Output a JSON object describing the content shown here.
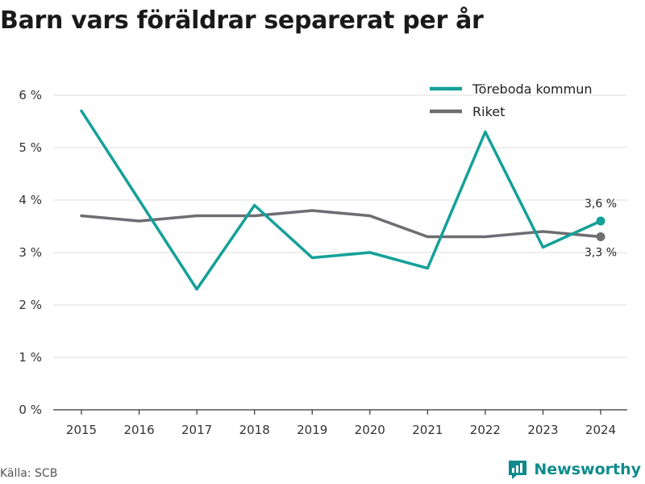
{
  "header": {
    "title": "Barn vars föräldrar separerat per år"
  },
  "footer": {
    "source": "Källa: SCB",
    "brand": "Newsworthy"
  },
  "colors": {
    "series_1": "#14a099",
    "series_2": "#6d6d72",
    "grid": "#dddddd",
    "axis": "#333333",
    "brand": "#0f8b8b"
  },
  "icons": {
    "brand_logo": "bar-chart-speech-bubble-icon"
  },
  "chart_data": {
    "type": "line",
    "title": "Barn vars föräldrar separerat per år",
    "xlabel": "",
    "ylabel": "",
    "x": [
      "2015",
      "2016",
      "2017",
      "2018",
      "2019",
      "2020",
      "2021",
      "2022",
      "2023",
      "2024"
    ],
    "ylim": [
      0,
      6
    ],
    "yticks": [
      0,
      1,
      2,
      3,
      4,
      5,
      6
    ],
    "ytick_labels": [
      "0 %",
      "1 %",
      "2 %",
      "3 %",
      "4 %",
      "5 %",
      "6 %"
    ],
    "grid": true,
    "legend_position": "top-right",
    "series": [
      {
        "name": "Töreboda kommun",
        "color": "#14a099",
        "values": [
          5.7,
          4.0,
          2.3,
          3.9,
          2.9,
          3.0,
          2.7,
          5.3,
          3.1,
          3.6
        ],
        "end_label": "3,6 %"
      },
      {
        "name": "Riket",
        "color": "#6d6d72",
        "values": [
          3.7,
          3.6,
          3.7,
          3.7,
          3.8,
          3.7,
          3.3,
          3.3,
          3.4,
          3.3
        ],
        "end_label": "3,3 %"
      }
    ]
  }
}
